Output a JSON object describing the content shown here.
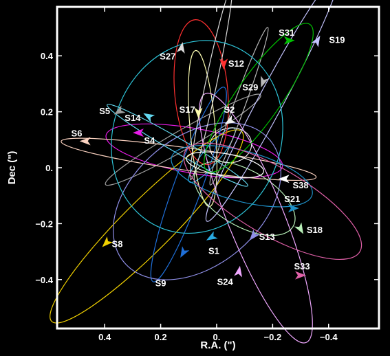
{
  "chart_data": {
    "type": "line",
    "xlabel": "R.A. (\")",
    "ylabel": "Dec (\")",
    "xlim": [
      0.57,
      -0.58
    ],
    "ylim": [
      -0.575,
      0.575
    ],
    "x_ticks": [
      {
        "v": 0.4,
        "label": "0.4"
      },
      {
        "v": 0.2,
        "label": "0.2"
      },
      {
        "v": 0.0,
        "label": "0."
      },
      {
        "v": -0.2,
        "label": "−0.2"
      },
      {
        "v": -0.4,
        "label": "−0.4"
      }
    ],
    "y_ticks": [
      {
        "v": 0.4,
        "label": "0.4"
      },
      {
        "v": 0.2,
        "label": "0.2"
      },
      {
        "v": 0.0,
        "label": "0."
      },
      {
        "v": -0.2,
        "label": "−0.2"
      },
      {
        "v": -0.4,
        "label": "−0.4"
      }
    ],
    "series": [
      {
        "name": "S1",
        "color": "#2aa9e0",
        "a": 0.125,
        "b": 0.03,
        "cx": 0.017,
        "cy": 0.045,
        "rot": 50,
        "label_xy": [
          0.01,
          -0.3
        ],
        "arrow": {
          "x": 0.02,
          "y": -0.25,
          "angle": 210
        }
      },
      {
        "name": "S2",
        "color": "#f2f2f2",
        "a": 0.075,
        "b": 0.062,
        "cx": -0.05,
        "cy": 0.08,
        "rot": 10,
        "label_xy": [
          -0.045,
          0.205
        ],
        "arrow": {
          "x": -0.045,
          "y": 0.165,
          "angle": 210
        }
      },
      {
        "name": "S4",
        "color": "#e81be8",
        "a": 0.32,
        "b": 0.08,
        "cx": 0.08,
        "cy": 0.06,
        "rot": -10,
        "label_xy": [
          0.24,
          0.095
        ],
        "arrow": {
          "x": 0.28,
          "y": 0.125,
          "angle": 180
        }
      },
      {
        "name": "S5",
        "color": "#9e9e9e",
        "a": 0.32,
        "b": 0.035,
        "cx": 0.12,
        "cy": 0.1,
        "rot": 30,
        "label_xy": [
          0.4,
          0.2
        ],
        "arrow": {
          "x": 0.35,
          "y": 0.2,
          "angle": 210
        }
      },
      {
        "name": "S6",
        "color": "#fbd2c0",
        "a": 0.46,
        "b": 0.04,
        "cx": 0.1,
        "cy": 0.03,
        "rot": -8,
        "label_xy": [
          0.5,
          0.12
        ],
        "arrow": {
          "x": 0.47,
          "y": 0.095,
          "angle": 180
        }
      },
      {
        "name": "S8",
        "color": "#f0d000",
        "a": 0.48,
        "b": 0.09,
        "cx": 0.25,
        "cy": -0.21,
        "rot": 45,
        "label_xy": [
          0.355,
          -0.275
        ],
        "arrow": {
          "x": 0.395,
          "y": -0.27,
          "angle": 225
        }
      },
      {
        "name": "S9",
        "color": "#1f6fd8",
        "a": 0.37,
        "b": 0.05,
        "cx": 0.1,
        "cy": -0.06,
        "rot": 70,
        "label_xy": [
          0.2,
          -0.415
        ],
        "arrow": {
          "x": 0.12,
          "y": -0.305,
          "angle": 240
        }
      },
      {
        "name": "S12",
        "color": "#ff3030",
        "a": 0.26,
        "b": 0.095,
        "cx": 0.055,
        "cy": 0.27,
        "rot": 95,
        "label_xy": [
          -0.07,
          0.37
        ],
        "arrow": {
          "x": -0.025,
          "y": 0.37,
          "angle": 270
        }
      },
      {
        "name": "S13",
        "color": "#8f8fe8",
        "a": 0.34,
        "b": 0.23,
        "cx": 0.07,
        "cy": -0.12,
        "rot": 40,
        "label_xy": [
          -0.18,
          -0.25
        ],
        "arrow": {
          "x": -0.13,
          "y": -0.245,
          "angle": 230
        }
      },
      {
        "name": "S14",
        "color": "#62d8f0",
        "a": 0.29,
        "b": 0.025,
        "cx": 0.14,
        "cy": 0.08,
        "rot": -30,
        "label_xy": [
          0.3,
          0.175
        ],
        "arrow": {
          "x": 0.245,
          "y": 0.185,
          "angle": 150
        }
      },
      {
        "name": "S17",
        "color": "#fafab0",
        "a": 0.28,
        "b": 0.045,
        "cx": 0.05,
        "cy": 0.14,
        "rot": 95,
        "label_xy": [
          0.105,
          0.205
        ],
        "arrow": {
          "x": 0.065,
          "y": 0.195,
          "angle": 270
        }
      },
      {
        "name": "S18",
        "color": "#b8f0b8",
        "a": 0.2,
        "b": 0.1,
        "cx": -0.1,
        "cy": -0.11,
        "rot": -30,
        "label_xy": [
          -0.35,
          -0.225
        ],
        "arrow": {
          "x": -0.3,
          "y": -0.22,
          "angle": 300
        }
      },
      {
        "name": "S19",
        "color": "#c4c4ff",
        "a": 0.5,
        "b": 0.045,
        "cx": -0.2,
        "cy": 0.25,
        "rot": 62,
        "label_xy": [
          -0.43,
          0.455
        ],
        "arrow": {
          "x": -0.36,
          "y": 0.455,
          "angle": 60
        }
      },
      {
        "name": "S21",
        "color": "#1e90c8",
        "a": 0.26,
        "b": 0.09,
        "cx": -0.09,
        "cy": -0.03,
        "rot": -15,
        "label_xy": [
          -0.27,
          -0.115
        ],
        "arrow": {
          "x": -0.275,
          "y": -0.145,
          "angle": 0
        }
      },
      {
        "name": "S24",
        "color": "#f0a8ff",
        "a": 0.48,
        "b": 0.1,
        "cx": -0.14,
        "cy": -0.18,
        "rot": -68,
        "label_xy": [
          -0.03,
          -0.41
        ],
        "arrow": {
          "x": -0.08,
          "y": -0.37,
          "angle": 80
        }
      },
      {
        "name": "S27",
        "color": "#dcdcdc",
        "a": 0.35,
        "b": 0.02,
        "cx": 0.02,
        "cy": 0.3,
        "rot": 78,
        "label_xy": [
          0.175,
          0.395
        ],
        "arrow": {
          "x": 0.125,
          "y": 0.43,
          "angle": 80
        }
      },
      {
        "name": "S29",
        "color": "#b9b9b9",
        "a": 0.3,
        "b": 0.02,
        "cx": -0.08,
        "cy": 0.22,
        "rot": 70,
        "label_xy": [
          -0.12,
          0.285
        ],
        "arrow": {
          "x": -0.165,
          "y": 0.305,
          "angle": 250
        }
      },
      {
        "name": "S31",
        "color": "#00c000",
        "a": 0.32,
        "b": 0.08,
        "cx": -0.15,
        "cy": 0.25,
        "rot": 55,
        "label_xy": [
          -0.25,
          0.48
        ],
        "arrow": {
          "x": -0.26,
          "y": 0.455,
          "angle": 0
        }
      },
      {
        "name": "S33",
        "color": "#e060a8",
        "a": 0.36,
        "b": 0.12,
        "cx": -0.2,
        "cy": -0.12,
        "rot": -30,
        "label_xy": [
          -0.305,
          -0.355
        ],
        "arrow": {
          "x": -0.3,
          "y": -0.385,
          "angle": 0
        }
      },
      {
        "name": "S38",
        "color": "#ffffff",
        "a": 0.14,
        "b": 0.04,
        "cx": -0.03,
        "cy": 0.01,
        "rot": -10,
        "label_xy": [
          -0.3,
          -0.065
        ],
        "arrow": {
          "x": -0.24,
          "y": -0.04,
          "angle": 180
        }
      },
      {
        "name": "",
        "color": "#2ec4d8",
        "a": 0.35,
        "b": 0.3,
        "cx": 0.07,
        "cy": 0.11,
        "rot": 70,
        "label_xy": null,
        "arrow": null
      }
    ]
  }
}
